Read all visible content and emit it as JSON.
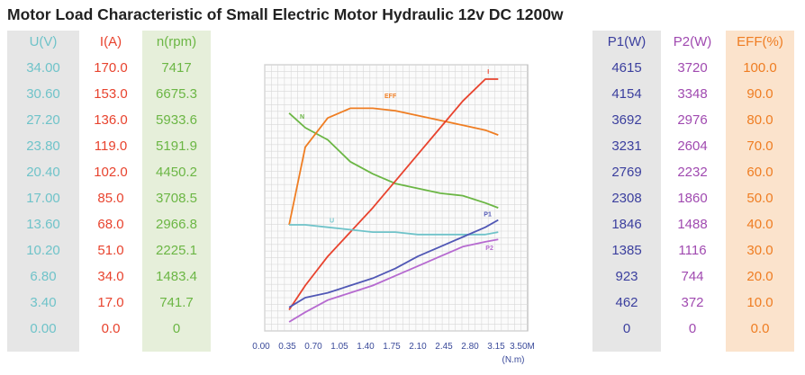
{
  "title": "Motor Load Characteristic of Small Electric Motor Hydraulic 12v DC 1200w",
  "colors": {
    "voltage": "#6fc3c9",
    "current": "#e8432e",
    "speed": "#6bb644",
    "p1": "#3b3f9e",
    "p2": "#a04ab0",
    "eff": "#ef7d22"
  },
  "table_left": {
    "voltage": {
      "header": "U(V)",
      "values": [
        "34.00",
        "30.60",
        "27.20",
        "23.80",
        "20.40",
        "17.00",
        "13.60",
        "10.20",
        "6.80",
        "3.40",
        "0.00"
      ]
    },
    "current": {
      "header": "I(A)",
      "values": [
        "170.0",
        "153.0",
        "136.0",
        "119.0",
        "102.0",
        "85.0",
        "68.0",
        "51.0",
        "34.0",
        "17.0",
        "0.0"
      ]
    },
    "speed": {
      "header": "n(rpm)",
      "values": [
        "7417",
        "6675.3",
        "5933.6",
        "5191.9",
        "4450.2",
        "3708.5",
        "2966.8",
        "2225.1",
        "1483.4",
        "741.7",
        "0"
      ]
    }
  },
  "table_right": {
    "p1": {
      "header": "P1(W)",
      "values": [
        "4615",
        "4154",
        "3692",
        "3231",
        "2769",
        "2308",
        "1846",
        "1385",
        "923",
        "462",
        "0"
      ]
    },
    "p2": {
      "header": "P2(W)",
      "values": [
        "3720",
        "3348",
        "2976",
        "2604",
        "2232",
        "1860",
        "1488",
        "1116",
        "744",
        "372",
        "0"
      ]
    },
    "eff": {
      "header": "EFF(%)",
      "values": [
        "100.0",
        "90.0",
        "80.0",
        "70.0",
        "60.0",
        "50.0",
        "40.0",
        "30.0",
        "20.0",
        "10.0",
        "0.0"
      ]
    }
  },
  "chart_data": {
    "type": "line",
    "xlabel": "(N.m)",
    "xlim": [
      0,
      3.5
    ],
    "x_ticks": [
      "0.00",
      "0.35",
      "0.70",
      "1.05",
      "1.40",
      "1.75",
      "2.10",
      "2.45",
      "2.80",
      "3.15",
      "3.50M"
    ],
    "grid": true,
    "x": [
      0.1,
      0.35,
      0.7,
      1.05,
      1.4,
      1.75,
      2.1,
      2.45,
      2.8,
      3.15,
      3.35
    ],
    "series": [
      {
        "name": "N",
        "color": "#6bb644",
        "y_level": [
          0.86,
          0.8,
          0.75,
          0.66,
          0.61,
          0.57,
          0.55,
          0.53,
          0.52,
          0.49,
          0.47
        ]
      },
      {
        "name": "EFF",
        "color": "#ef7d22",
        "y_level": [
          0.4,
          0.72,
          0.84,
          0.88,
          0.88,
          0.87,
          0.85,
          0.83,
          0.81,
          0.79,
          0.77
        ]
      },
      {
        "name": "I",
        "color": "#e8432e",
        "y_level": [
          0.05,
          0.15,
          0.27,
          0.37,
          0.47,
          0.58,
          0.69,
          0.8,
          0.91,
          1.0,
          1.0
        ]
      },
      {
        "name": "U",
        "color": "#6fc3c9",
        "y_level": [
          0.4,
          0.4,
          0.39,
          0.38,
          0.37,
          0.37,
          0.36,
          0.36,
          0.36,
          0.36,
          0.37
        ]
      },
      {
        "name": "P1",
        "color": "#5057b5",
        "y_level": [
          0.06,
          0.1,
          0.12,
          0.15,
          0.18,
          0.22,
          0.27,
          0.31,
          0.35,
          0.39,
          0.42
        ]
      },
      {
        "name": "P2",
        "color": "#b66ad0",
        "y_level": [
          0.0,
          0.04,
          0.09,
          0.12,
          0.15,
          0.19,
          0.23,
          0.27,
          0.31,
          0.33,
          0.34
        ]
      }
    ]
  }
}
